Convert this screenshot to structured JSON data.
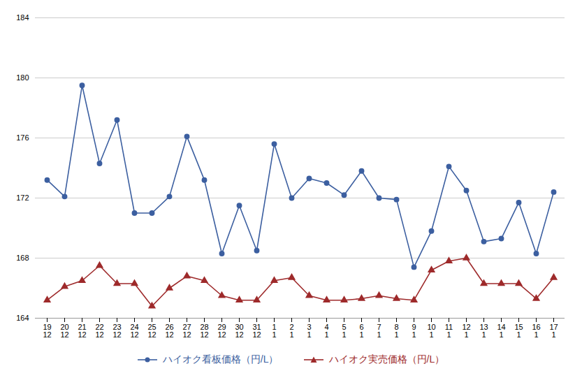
{
  "chart_data": {
    "type": "line",
    "categories": [
      "19\n12",
      "20\n12",
      "21\n12",
      "22\n12",
      "23\n12",
      "24\n12",
      "25\n12",
      "26\n12",
      "27\n12",
      "28\n12",
      "29\n12",
      "30\n12",
      "31\n12",
      "1\n1",
      "2\n1",
      "3\n1",
      "4\n1",
      "5\n1",
      "6\n1",
      "7\n1",
      "8\n1",
      "9\n1",
      "10\n1",
      "11\n1",
      "12\n1",
      "13\n1",
      "14\n1",
      "15\n1",
      "16\n1",
      "17\n1"
    ],
    "series": [
      {
        "name": "ハイオク看板価格（円/L）",
        "color": "#3c5fa0",
        "marker": "circle",
        "line_style": "solid",
        "values": [
          173.2,
          172.1,
          179.5,
          174.3,
          177.2,
          171.0,
          171.0,
          172.1,
          176.1,
          173.2,
          168.3,
          171.5,
          168.5,
          175.6,
          172.0,
          173.3,
          173.0,
          172.2,
          173.8,
          172.0,
          171.9,
          167.4,
          169.8,
          174.1,
          172.5,
          169.1,
          169.3,
          171.7,
          168.3,
          172.4
        ]
      },
      {
        "name": "ハイオク実売価格（円/L）",
        "color": "#9e2a2b",
        "marker": "triangle",
        "line_style": "solid",
        "values": [
          165.2,
          166.1,
          166.5,
          167.5,
          166.3,
          166.3,
          164.8,
          166.0,
          166.8,
          166.5,
          165.5,
          165.2,
          165.2,
          166.5,
          166.7,
          165.5,
          165.2,
          165.2,
          165.3,
          165.5,
          165.3,
          165.2,
          167.2,
          167.8,
          168.0,
          166.3,
          166.3,
          166.3,
          165.3,
          166.7
        ]
      }
    ],
    "ylim": [
      164,
      184
    ],
    "yticks": [
      164,
      168,
      172,
      176,
      180,
      184
    ],
    "grid": true,
    "legend": "bottom"
  }
}
